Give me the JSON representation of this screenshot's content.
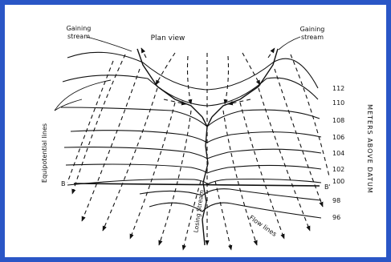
{
  "diagram": {
    "title": "Plan view",
    "gaining_stream_left": [
      "Gaining",
      "stream"
    ],
    "gaining_stream_right": [
      "Gaining",
      "stream"
    ],
    "equipotential_label": "Equipotential lines",
    "losing_stream_label": "Losing Stream",
    "flow_lines_label": "Flow lines",
    "axis_label": "METERS ABOVE DATUM",
    "section_left": "B",
    "section_right": "B'",
    "contours": [
      "112",
      "110",
      "108",
      "106",
      "104",
      "102",
      "100",
      "98",
      "96"
    ]
  }
}
